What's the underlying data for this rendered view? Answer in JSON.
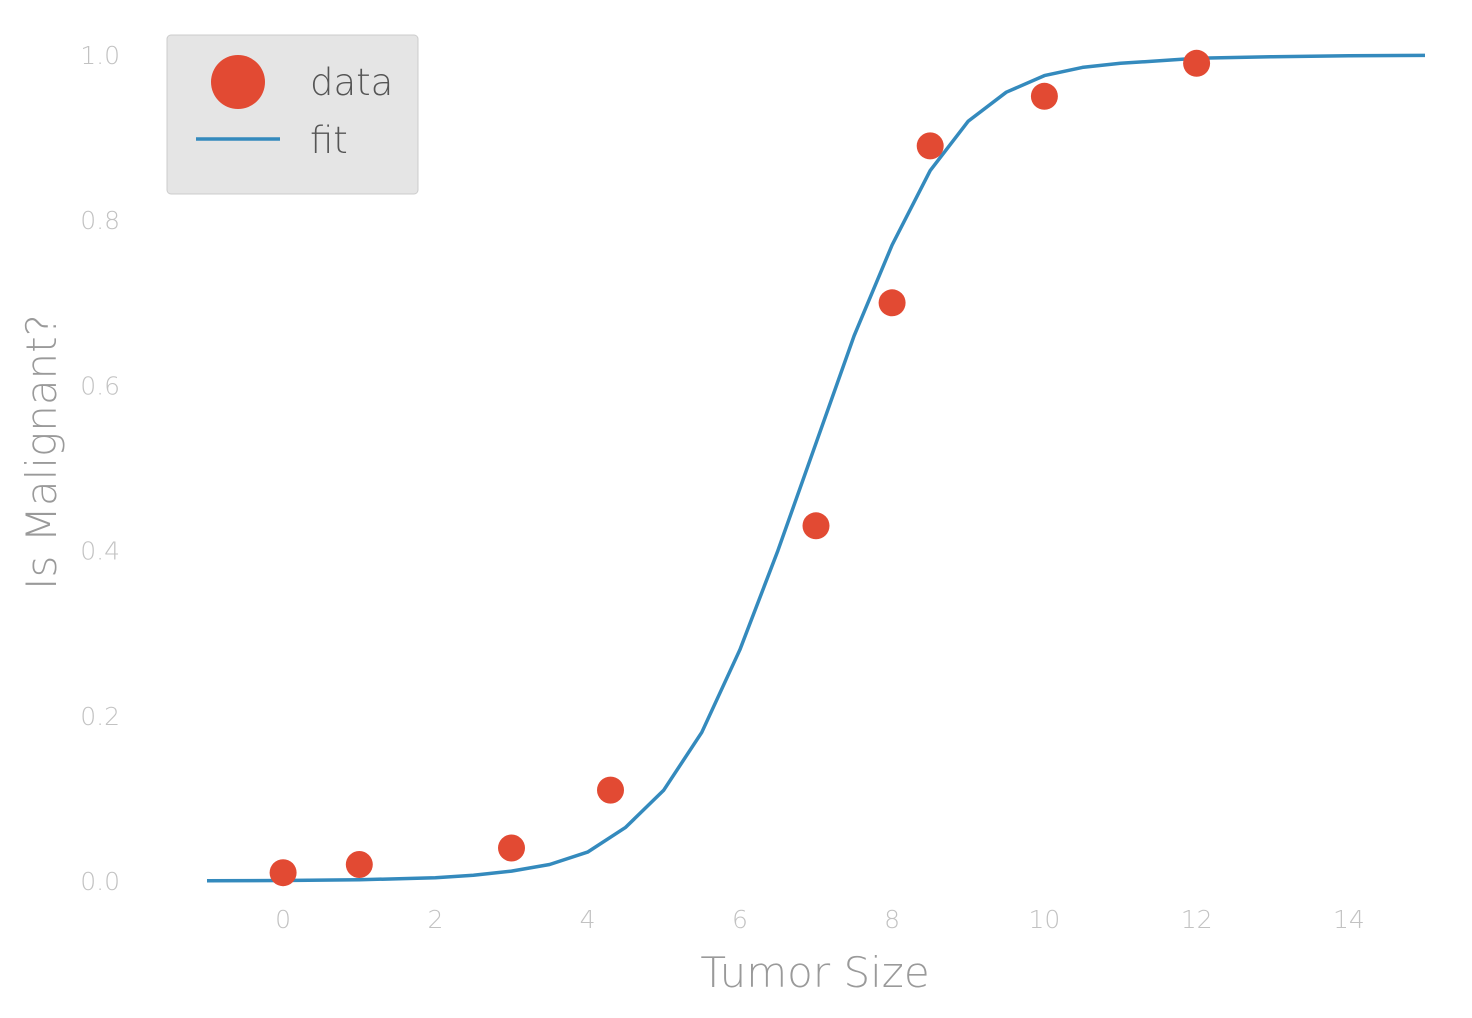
{
  "chart_data": {
    "type": "scatter",
    "xlabel": "Tumor Size",
    "ylabel": "Is Malignant?",
    "xlim": [
      -1,
      15
    ],
    "ylim": [
      0,
      1
    ],
    "xticks": [
      0,
      2,
      4,
      6,
      8,
      10,
      12,
      14
    ],
    "xtick_labels": [
      "0",
      "2",
      "4",
      "6",
      "8",
      "10",
      "12",
      "14"
    ],
    "yticks": [
      0,
      0.2,
      0.4,
      0.6,
      0.8,
      1.0
    ],
    "ytick_labels": [
      "0.0",
      "0.2",
      "0.4",
      "0.6",
      "0.8",
      "1.0"
    ],
    "grid": false,
    "legend": {
      "placement": "top-left",
      "entries": [
        {
          "label": "data",
          "kind": "marker",
          "color": "#e24a33"
        },
        {
          "label": "fit",
          "kind": "line",
          "color": "#348abd"
        }
      ]
    },
    "series": [
      {
        "name": "data",
        "kind": "scatter",
        "color": "#e24a33",
        "x": [
          0,
          1,
          3,
          4.3,
          7,
          8,
          8.5,
          10,
          12
        ],
        "y": [
          0.01,
          0.02,
          0.04,
          0.11,
          0.43,
          0.7,
          0.89,
          0.95,
          0.99
        ]
      },
      {
        "name": "fit",
        "kind": "line",
        "color": "#348abd",
        "x": [
          -1,
          0,
          1,
          2,
          2.5,
          3,
          3.5,
          4,
          4.5,
          5,
          5.5,
          6,
          6.5,
          7,
          7.5,
          8,
          8.5,
          9,
          9.5,
          10,
          10.5,
          11,
          12,
          13,
          14,
          15
        ],
        "y": [
          0.0003,
          0.0006,
          0.0015,
          0.004,
          0.007,
          0.012,
          0.02,
          0.035,
          0.065,
          0.11,
          0.18,
          0.28,
          0.4,
          0.53,
          0.66,
          0.77,
          0.86,
          0.92,
          0.955,
          0.975,
          0.985,
          0.99,
          0.996,
          0.998,
          0.999,
          0.9995
        ]
      }
    ]
  }
}
